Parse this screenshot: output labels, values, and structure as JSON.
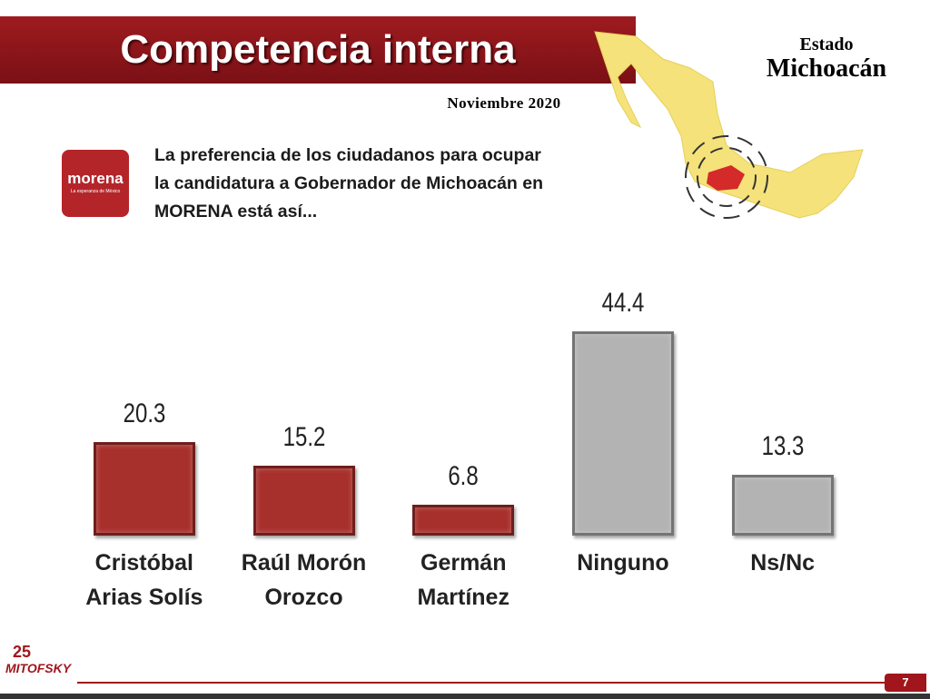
{
  "header": {
    "title": "Competencia interna",
    "estado": "Estado",
    "state": "Michoacán",
    "date": "Noviembre 2020"
  },
  "logo": {
    "name": "morena",
    "tagline": "La esperanza de México"
  },
  "description": [
    "La preferencia de los ciudadanos para ocupar",
    "la candidatura a Gobernador de Michoacán en",
    "MORENA está así..."
  ],
  "footer": {
    "brand": "MITOFSKY",
    "anniversary": "25",
    "page": 7
  },
  "chart_data": {
    "type": "bar",
    "categories": [
      "Cristóbal Arias Solís",
      "Raúl Morón Orozco",
      "Germán Martínez",
      "Ninguno",
      "Ns/Nc"
    ],
    "values": [
      20.3,
      15.2,
      6.8,
      44.4,
      13.3
    ],
    "colors": [
      "#a8302c",
      "#a8302c",
      "#a8302c",
      "#b3b3b3",
      "#b3b3b3"
    ],
    "ylim": [
      0,
      50
    ]
  }
}
